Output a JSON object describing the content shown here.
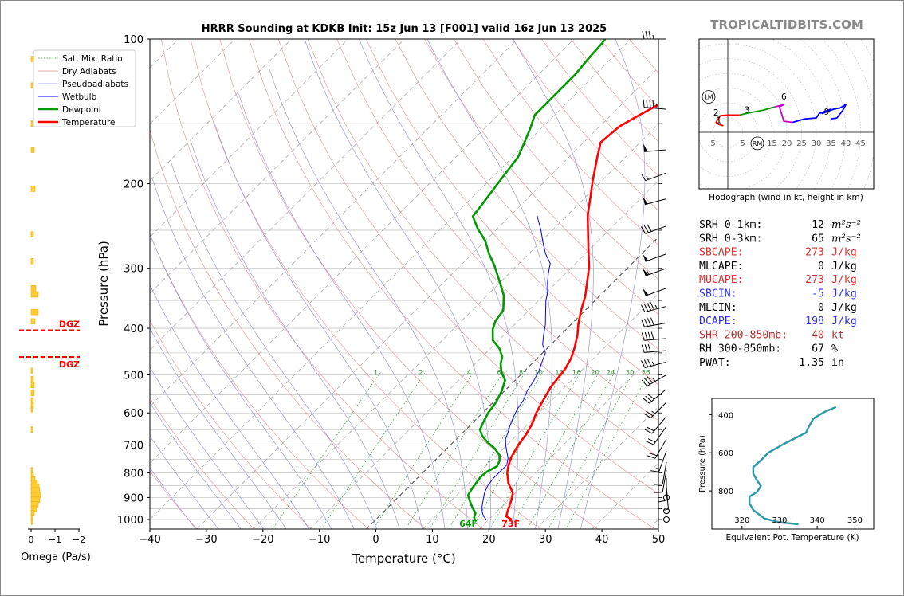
{
  "title": "HRRR Sounding at KDKB Init: 15z Jun 13 [F001] valid 16z Jun 13 2025",
  "brand": "TROPICALTIDBITS.COM",
  "chart_data": [
    {
      "type": "line",
      "name": "skewt",
      "xlabel": "Temperature (°C)",
      "ylabel": "Pressure (hPa)",
      "xlim": [
        -40,
        50
      ],
      "ylim": [
        1050,
        100
      ],
      "y_scale": "log",
      "x_ticks": [
        -40,
        -30,
        -20,
        -10,
        0,
        10,
        20,
        30,
        40,
        50
      ],
      "p_ticks": [
        100,
        200,
        300,
        400,
        500,
        600,
        700,
        800,
        900,
        1000
      ],
      "legend": [
        "Sat. Mix. Ratio",
        "Dry Adiabats",
        "Pseudoadiabats",
        "Wetbulb",
        "Dewpoint",
        "Temperature"
      ],
      "legend_position": "top-left",
      "mix_ratio_labels": [
        "1",
        "2",
        "4",
        "6",
        "8",
        "10",
        "13",
        "16",
        "20",
        "24",
        "30",
        "36"
      ],
      "surface_labels": {
        "dewpoint": "64F",
        "temperature": "73F"
      },
      "series": [
        {
          "name": "Temperature",
          "color": "#ff0000",
          "points": [
            [
              24.0,
              1000
            ],
            [
              22.5,
              985
            ],
            [
              21.8,
              960
            ],
            [
              20.5,
              910
            ],
            [
              19.5,
              880
            ],
            [
              17.0,
              840
            ],
            [
              15.0,
              800
            ],
            [
              14.0,
              775
            ],
            [
              13.0,
              745
            ],
            [
              12.0,
              700
            ],
            [
              11.5,
              665
            ],
            [
              10.8,
              635
            ],
            [
              9.5,
              600
            ],
            [
              8.5,
              565
            ],
            [
              7.5,
              530
            ],
            [
              7.2,
              510
            ],
            [
              6.8,
              485
            ],
            [
              6.0,
              462
            ],
            [
              4.8,
              440
            ],
            [
              3.0,
              413
            ],
            [
              1.3,
              393
            ],
            [
              -0.5,
              370
            ],
            [
              -2.5,
              343
            ],
            [
              -4.5,
              322
            ],
            [
              -7.0,
              298
            ],
            [
              -10.5,
              272
            ],
            [
              -14.0,
              248
            ],
            [
              -16.5,
              232
            ],
            [
              -19.0,
              214
            ],
            [
              -21.5,
              198
            ],
            [
              -25.0,
              176
            ],
            [
              -27.0,
              164
            ],
            [
              -26.5,
              152
            ],
            [
              -25.0,
              144
            ],
            [
              -23.0,
              135
            ],
            [
              -20.0,
              123
            ],
            [
              -18.0,
              114
            ],
            [
              -16.5,
              106
            ],
            [
              -15.5,
              100
            ]
          ]
        },
        {
          "name": "Dewpoint",
          "color": "#009900",
          "points": [
            [
              17.5,
              1000
            ],
            [
              17.0,
              990
            ],
            [
              16.5,
              970
            ],
            [
              15.0,
              945
            ],
            [
              13.5,
              918
            ],
            [
              12.0,
              890
            ],
            [
              11.5,
              860
            ],
            [
              11.3,
              842
            ],
            [
              11.0,
              815
            ],
            [
              11.2,
              795
            ],
            [
              12.0,
              775
            ],
            [
              11.5,
              755
            ],
            [
              10.5,
              735
            ],
            [
              8.5,
              712
            ],
            [
              6.0,
              690
            ],
            [
              4.0,
              670
            ],
            [
              2.5,
              650
            ],
            [
              1.8,
              628
            ],
            [
              1.0,
              600
            ],
            [
              0.5,
              570
            ],
            [
              -0.5,
              540
            ],
            [
              -1.8,
              513
            ],
            [
              -4.0,
              492
            ],
            [
              -5.5,
              474
            ],
            [
              -6.5,
              458
            ],
            [
              -8.5,
              440
            ],
            [
              -11.0,
              424
            ],
            [
              -13.0,
              402
            ],
            [
              -14.0,
              386
            ],
            [
              -14.5,
              367
            ],
            [
              -17.0,
              342
            ],
            [
              -20.5,
              318
            ],
            [
              -24.0,
              296
            ],
            [
              -27.0,
              280
            ],
            [
              -30.0,
              263
            ],
            [
              -33.5,
              248
            ],
            [
              -36.5,
              234
            ],
            [
              -37.0,
              221
            ],
            [
              -37.5,
              209
            ],
            [
              -38.0,
              198
            ],
            [
              -38.5,
              187
            ],
            [
              -39.0,
              176
            ],
            [
              -40.5,
              164
            ],
            [
              -42.0,
              153
            ],
            [
              -43.5,
              144
            ],
            [
              -43.5,
              137
            ],
            [
              -43.5,
              128
            ],
            [
              -43.5,
              119
            ],
            [
              -44.0,
              110
            ],
            [
              -44.3,
              102
            ],
            [
              -44.5,
              100
            ]
          ]
        },
        {
          "name": "Wetbulb",
          "color": "#0000ff",
          "points": [
            [
              19.5,
              1000
            ],
            [
              18.5,
              985
            ],
            [
              17.5,
              965
            ],
            [
              16.5,
              940
            ],
            [
              15.5,
              910
            ],
            [
              14.5,
              880
            ],
            [
              13.8,
              850
            ],
            [
              13.5,
              820
            ],
            [
              13.5,
              795
            ],
            [
              13.5,
              770
            ],
            [
              12.5,
              745
            ],
            [
              11.0,
              720
            ],
            [
              9.8,
              700
            ],
            [
              8.7,
              680
            ],
            [
              8.0,
              660
            ],
            [
              7.2,
              640
            ],
            [
              6.3,
              615
            ],
            [
              5.5,
              590
            ],
            [
              5.0,
              565
            ],
            [
              4.0,
              540
            ],
            [
              3.4,
              515
            ],
            [
              2.5,
              490
            ],
            [
              1.5,
              470
            ],
            [
              0.5,
              450
            ],
            [
              -1.5,
              432
            ],
            [
              -3.0,
              413
            ],
            [
              -4.5,
              393
            ],
            [
              -6.5,
              372
            ],
            [
              -8.7,
              350
            ],
            [
              -10.0,
              335
            ],
            [
              -11.5,
              322
            ],
            [
              -13.0,
              308
            ],
            [
              -14.5,
              293
            ],
            [
              -17.0,
              280
            ],
            [
              -19.5,
              265
            ],
            [
              -22.0,
              250
            ],
            [
              -25.5,
              232
            ]
          ]
        }
      ]
    },
    {
      "type": "line",
      "name": "hodograph",
      "caption": "Hodograph (wind in kt, height in km)",
      "ring_labels": [
        "5",
        "5",
        "10",
        "15",
        "20",
        "25",
        "30",
        "35",
        "40",
        "45"
      ],
      "markers": [
        "LM",
        "RM"
      ],
      "height_labels": [
        "1",
        "2",
        "3",
        "6",
        "9"
      ],
      "segments": [
        {
          "color": "#ff0000",
          "points": [
            [
              -1.5,
              3
            ],
            [
              -3,
              3.5
            ],
            [
              -4,
              4.5
            ],
            [
              -3.5,
              5.5
            ],
            [
              -2.5,
              7.5
            ],
            [
              0,
              7.8
            ],
            [
              4,
              7.8
            ]
          ]
        },
        {
          "color": "#009900",
          "points": [
            [
              4,
              7.8
            ],
            [
              8,
              9
            ],
            [
              12,
              10
            ],
            [
              16,
              11.5
            ]
          ]
        },
        {
          "color": "#cc00cc",
          "points": [
            [
              16,
              11.5
            ],
            [
              19,
              12.5
            ],
            [
              17.5,
              11.5
            ],
            [
              19,
              5
            ],
            [
              22,
              4.5
            ]
          ]
        },
        {
          "color": "#0000ff",
          "points": [
            [
              22,
              4.5
            ],
            [
              26,
              6
            ],
            [
              30,
              6.5
            ],
            [
              31,
              8.5
            ],
            [
              35,
              10.5
            ],
            [
              33,
              9
            ],
            [
              32,
              8.5
            ],
            [
              36,
              10.5
            ],
            [
              38,
              11
            ],
            [
              40,
              12.5
            ],
            [
              39,
              10
            ],
            [
              37,
              6.5
            ],
            [
              35,
              6
            ]
          ]
        }
      ]
    },
    {
      "type": "line",
      "name": "theta-e",
      "xlabel": "Equivalent Pot. Temperature (K)",
      "ylabel": "Pressure (hPa)",
      "x_ticks": [
        320,
        330,
        340,
        350
      ],
      "y_ticks": [
        400,
        600,
        800
      ],
      "color": "#2a9aa8",
      "points": [
        [
          335,
          975
        ],
        [
          330,
          965
        ],
        [
          326,
          945
        ],
        [
          323,
          900
        ],
        [
          322,
          865
        ],
        [
          322,
          830
        ],
        [
          324,
          805
        ],
        [
          325,
          775
        ],
        [
          324,
          745
        ],
        [
          323,
          710
        ],
        [
          323,
          675
        ],
        [
          325,
          640
        ],
        [
          327,
          600
        ],
        [
          331,
          555
        ],
        [
          337,
          495
        ],
        [
          338,
          455
        ],
        [
          339,
          420
        ],
        [
          342,
          385
        ],
        [
          345,
          360
        ]
      ]
    },
    {
      "type": "bar",
      "name": "omega",
      "xlabel": "Omega (Pa/s)",
      "x_ticks": [
        "0",
        "−1",
        "−2"
      ],
      "dgz_label": "DGZ",
      "dgz_pressures": [
        404,
        459
      ]
    }
  ],
  "stats": [
    {
      "label": "SRH 0-1km:",
      "value": "12",
      "unit": "m²s⁻²",
      "color": "#000000"
    },
    {
      "label": "SRH 0-3km:",
      "value": "65",
      "unit": "m²s⁻²",
      "color": "#000000"
    },
    {
      "label": "SBCAPE:",
      "value": "273",
      "unit": "J/kg",
      "color": "#e03030"
    },
    {
      "label": "MLCAPE:",
      "value": "0",
      "unit": "J/kg",
      "color": "#000000"
    },
    {
      "label": "MUCAPE:",
      "value": "273",
      "unit": "J/kg",
      "color": "#e03030"
    },
    {
      "label": "SBCIN:",
      "value": "-5",
      "unit": "J/kg",
      "color": "#3030e0"
    },
    {
      "label": "MLCIN:",
      "value": "0",
      "unit": "J/kg",
      "color": "#000000"
    },
    {
      "label": "DCAPE:",
      "value": "198",
      "unit": "J/kg",
      "color": "#3030e0"
    },
    {
      "label": "SHR 200-850mb:",
      "value": "40",
      "unit": "kt",
      "color": "#b03030"
    },
    {
      "label": "RH 300-850mb:",
      "value": "67",
      "unit": "%",
      "color": "#000000"
    },
    {
      "label": "PWAT:",
      "value": "1.35",
      "unit": "in",
      "color": "#000000"
    }
  ]
}
